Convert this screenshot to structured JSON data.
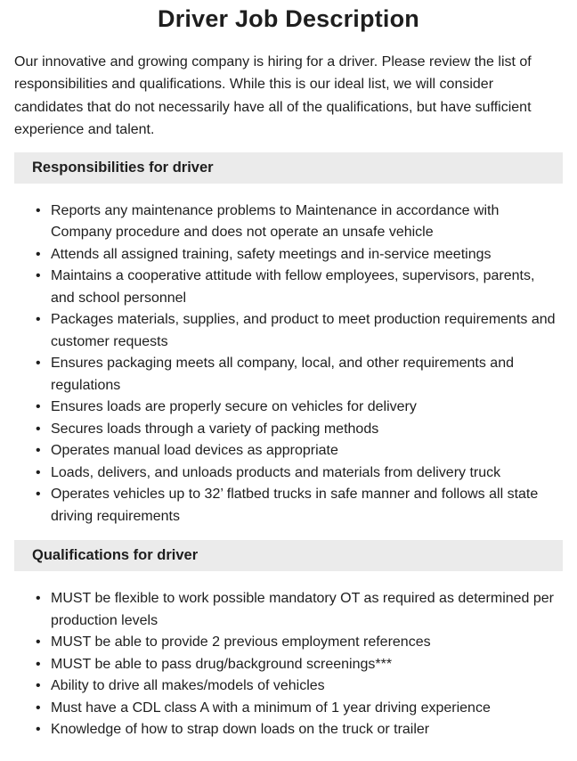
{
  "document": {
    "title": "Driver Job Description",
    "intro": "Our innovative and growing company is hiring for a driver. Please review the list of responsibilities and qualifications. While this is our ideal list, we will consider candidates that do not necessarily have all of the qualifications, but have sufficient experience and talent."
  },
  "sections": [
    {
      "heading": "Responsibilities for driver",
      "items": [
        "Reports any maintenance problems to Maintenance in accordance with Company procedure and does not operate an unsafe vehicle",
        "Attends all assigned training, safety meetings and in-service meetings",
        "Maintains a cooperative attitude with fellow employees, supervisors, parents, and school personnel",
        "Packages materials, supplies, and product to meet production requirements and customer requests",
        "Ensures packaging meets all company, local, and other requirements and regulations",
        "Ensures loads are properly secure on vehicles for delivery",
        "Secures loads through a variety of packing methods",
        "Operates manual load devices as appropriate",
        "Loads, delivers, and unloads products and materials from delivery truck",
        "Operates vehicles up to 32’ flatbed trucks in safe manner and follows all state driving requirements"
      ]
    },
    {
      "heading": "Qualifications for driver",
      "items": [
        "MUST be flexible to work possible mandatory OT as required as determined per production levels",
        "MUST be able to provide 2 previous employment references",
        "MUST be able to pass drug/background screenings***",
        "Ability to drive all makes/models of vehicles",
        "Must have a CDL class A with a minimum of 1 year driving experience",
        "Knowledge of how to strap down loads on the truck or trailer"
      ]
    }
  ],
  "colors": {
    "background": "#ffffff",
    "text": "#1e1e1e",
    "section_header_bg": "#ebebeb"
  }
}
